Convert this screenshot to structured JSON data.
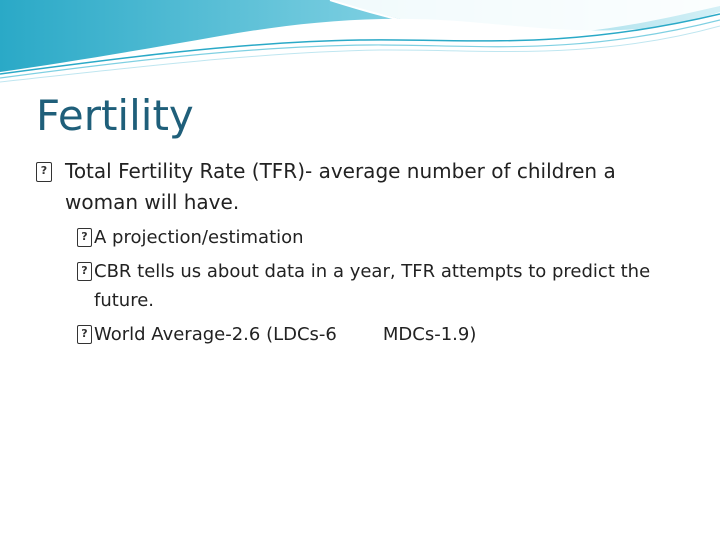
{
  "slide": {
    "title": "Fertility",
    "bullet_glyph": "?",
    "bullets": [
      {
        "text": "Total Fertility Rate (TFR)- average number of children a woman will have."
      }
    ],
    "sub_bullets": [
      {
        "text": "A projection/estimation"
      },
      {
        "text": "CBR tells us about data in a year, TFR attempts to predict the future."
      },
      {
        "text_part1": "World Average-2.6 (LDCs-6",
        "text_part2": "MDCs-1.9)"
      }
    ]
  },
  "colors": {
    "title": "#1f5f7a",
    "header_wave_dark": "#2aa9c7",
    "header_wave_light": "#bfe6f0"
  }
}
